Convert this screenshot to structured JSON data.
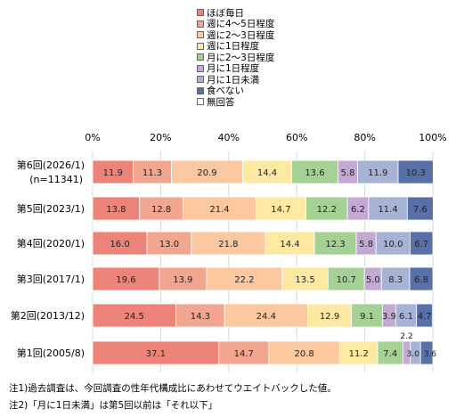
{
  "chart_data": {
    "type": "bar",
    "orientation": "horizontal-stacked-percent",
    "xlim": [
      0,
      100
    ],
    "x_ticks": [
      "0%",
      "20%",
      "40%",
      "60%",
      "80%",
      "100%"
    ],
    "legend_position": "top",
    "series": [
      {
        "name": "ほぼ毎日",
        "color": "#ee8379",
        "values": [
          11.9,
          13.8,
          16.0,
          19.6,
          24.5,
          37.1
        ]
      },
      {
        "name": "週に4～5日程度",
        "color": "#f2a58f",
        "values": [
          11.3,
          12.8,
          13.0,
          13.9,
          14.3,
          14.7
        ]
      },
      {
        "name": "週に2～3日程度",
        "color": "#fbc8a0",
        "values": [
          20.9,
          21.4,
          21.8,
          22.2,
          24.4,
          20.8
        ]
      },
      {
        "name": "週に1日程度",
        "color": "#fde9a1",
        "values": [
          14.4,
          14.7,
          14.4,
          13.5,
          12.9,
          11.2
        ]
      },
      {
        "name": "月に2～3日程度",
        "color": "#a6d195",
        "values": [
          13.6,
          12.2,
          12.3,
          10.7,
          9.1,
          7.4
        ]
      },
      {
        "name": "月に1日程度",
        "color": "#c3a9d3",
        "values": [
          5.8,
          6.2,
          5.8,
          5.0,
          3.9,
          2.2
        ]
      },
      {
        "name": "月に1日未満",
        "color": "#a6b3d4",
        "values": [
          11.9,
          11.4,
          10.0,
          8.3,
          6.1,
          3.0
        ]
      },
      {
        "name": "食べない",
        "color": "#5870a8",
        "values": [
          10.3,
          7.6,
          6.7,
          6.8,
          4.7,
          3.6
        ]
      },
      {
        "name": "無回答",
        "color": "#ffffff",
        "values": [
          null,
          null,
          null,
          null,
          null,
          null
        ]
      }
    ],
    "categories": [
      {
        "label": "第6回(2026/1)",
        "sublabel": "(n=11341)"
      },
      {
        "label": "第5回(2023/1)",
        "sublabel": ""
      },
      {
        "label": "第4回(2020/1)",
        "sublabel": ""
      },
      {
        "label": "第3回(2017/1)",
        "sublabel": ""
      },
      {
        "label": "第2回(2013/12)",
        "sublabel": ""
      },
      {
        "label": "第1回(2005/8)",
        "sublabel": ""
      }
    ]
  },
  "notes": [
    "注1)過去調査は、今回調査の性年代構成比にあわせてウエイトバックした値。",
    "注2)「月に1日未満」は第5回以前は「それ以下」"
  ]
}
